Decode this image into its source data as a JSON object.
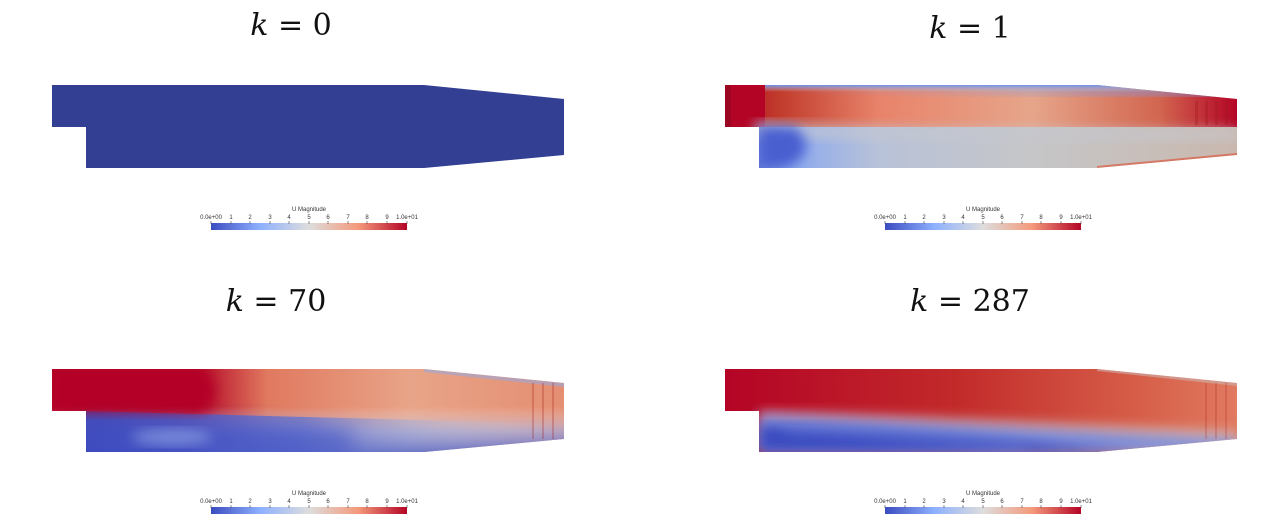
{
  "figure": {
    "colormap": {
      "name": "Cool to Warm",
      "stops": [
        "#3b4cc0",
        "#8db0fe",
        "#dddddd",
        "#f49a7b",
        "#b40426"
      ],
      "range": [
        0,
        10
      ]
    },
    "colorbar": {
      "title": "U Magnitude",
      "ticks": [
        "0.0e+00",
        "1",
        "2",
        "3",
        "4",
        "5",
        "6",
        "7",
        "8",
        "9",
        "1.0e+01"
      ]
    },
    "panels": [
      {
        "k_symbol": "k",
        "equals": " = ",
        "k_value": "0",
        "field": "uniform-low",
        "colorbar": {
          "title": "U Magnitude",
          "ticks": [
            "0.0e+00",
            "1",
            "2",
            "3",
            "4",
            "5",
            "6",
            "7",
            "8",
            "9",
            "1.0e+01"
          ]
        }
      },
      {
        "k_symbol": "k",
        "equals": " = ",
        "k_value": "1",
        "field": "early-iteration",
        "colorbar": {
          "title": "U Magnitude",
          "ticks": [
            "0.0e+00",
            "1",
            "2",
            "3",
            "4",
            "5",
            "6",
            "7",
            "8",
            "9",
            "1.0e+01"
          ]
        }
      },
      {
        "k_symbol": "k",
        "equals": " = ",
        "k_value": "70",
        "field": "developing-jet",
        "colorbar": {
          "title": "U Magnitude",
          "ticks": [
            "0.0e+00",
            "1",
            "2",
            "3",
            "4",
            "5",
            "6",
            "7",
            "8",
            "9",
            "1.0e+01"
          ]
        }
      },
      {
        "k_symbol": "k",
        "equals": " = ",
        "k_value": "287",
        "field": "converged-jet",
        "colorbar": {
          "title": "U Magnitude",
          "ticks": [
            "0.0e+00",
            "1",
            "2",
            "3",
            "4",
            "5",
            "6",
            "7",
            "8",
            "9",
            "1.0e+01"
          ]
        }
      }
    ]
  }
}
